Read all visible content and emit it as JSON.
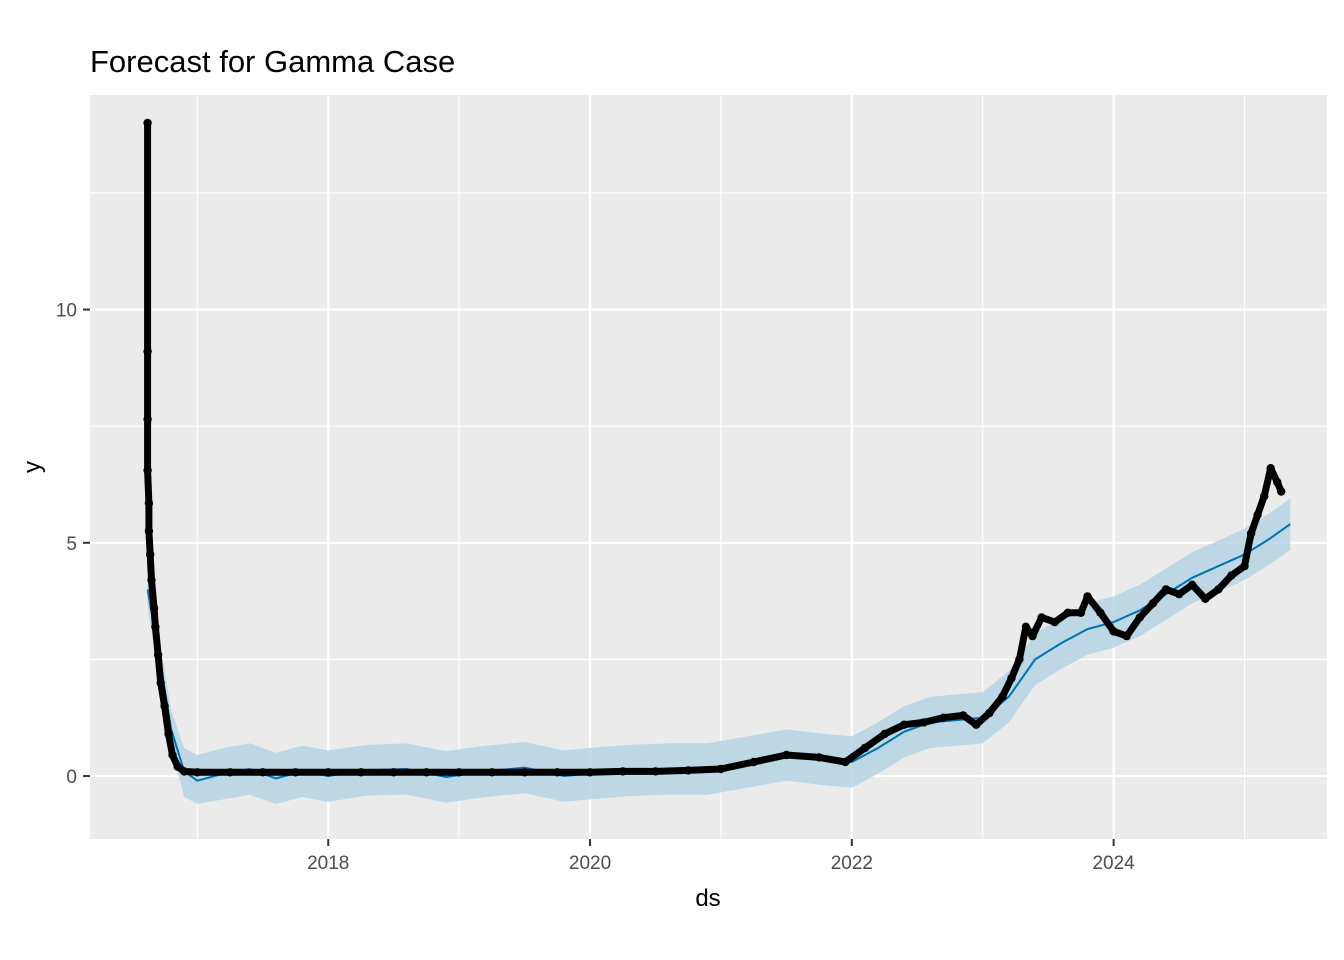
{
  "chart_data": {
    "type": "scatter",
    "title": "Forecast for Gamma Case",
    "xlabel": "ds",
    "ylabel": "y",
    "x_axis": {
      "range": [
        2016.18,
        2025.63
      ],
      "major_ticks": [
        2018,
        2020,
        2022,
        2024
      ],
      "tick_labels": [
        "2018",
        "2020",
        "2022",
        "2024"
      ],
      "minor_ticks": [
        2017,
        2019,
        2021,
        2023,
        2025
      ]
    },
    "y_axis": {
      "range": [
        -1.35,
        14.6
      ],
      "major_ticks": [
        0,
        5,
        10
      ],
      "tick_labels": [
        "0",
        "5",
        "10"
      ],
      "minor_ticks": [
        2.5,
        7.5,
        12.5
      ]
    },
    "grid": true,
    "background": "#ebebeb",
    "colors": {
      "observed": "#000000",
      "forecast_line": "#0072b2",
      "uncertainty_band": "#b5d3e4",
      "grid": "#ffffff"
    },
    "series": [
      {
        "name": "",
        "kind": "observed_points",
        "x": [
          2016.62,
          2016.62,
          2016.62,
          2016.62,
          2016.63,
          2016.63,
          2016.64,
          2016.65,
          2016.67,
          2016.68,
          2016.7,
          2016.72,
          2016.75,
          2016.78,
          2016.81,
          2016.85,
          2016.9,
          2017.0,
          2017.25,
          2017.5,
          2017.75,
          2018.0,
          2018.25,
          2018.5,
          2018.75,
          2019.0,
          2019.25,
          2019.5,
          2019.75,
          2020.0,
          2020.25,
          2020.5,
          2020.75,
          2021.0,
          2021.25,
          2021.5,
          2021.75,
          2021.95,
          2022.1,
          2022.25,
          2022.4,
          2022.55,
          2022.7,
          2022.85,
          2022.95,
          2023.05,
          2023.15,
          2023.22,
          2023.28,
          2023.33,
          2023.38,
          2023.45,
          2023.55,
          2023.65,
          2023.75,
          2023.8,
          2023.9,
          2024.0,
          2024.1,
          2024.2,
          2024.3,
          2024.4,
          2024.5,
          2024.6,
          2024.7,
          2024.8,
          2024.9,
          2025.0,
          2025.05,
          2025.1,
          2025.15,
          2025.2,
          2025.25,
          2025.28
        ],
        "y": [
          14.0,
          9.1,
          7.65,
          6.55,
          5.85,
          5.25,
          4.75,
          4.2,
          3.6,
          3.2,
          2.6,
          2.0,
          1.5,
          0.9,
          0.45,
          0.2,
          0.1,
          0.08,
          0.08,
          0.08,
          0.08,
          0.08,
          0.08,
          0.08,
          0.08,
          0.08,
          0.08,
          0.08,
          0.08,
          0.08,
          0.1,
          0.1,
          0.12,
          0.15,
          0.3,
          0.45,
          0.4,
          0.3,
          0.6,
          0.9,
          1.1,
          1.15,
          1.25,
          1.3,
          1.1,
          1.35,
          1.7,
          2.1,
          2.5,
          3.2,
          3.0,
          3.4,
          3.3,
          3.5,
          3.5,
          3.85,
          3.5,
          3.1,
          3.0,
          3.4,
          3.7,
          4.0,
          3.9,
          4.1,
          3.8,
          4.0,
          4.3,
          4.5,
          5.2,
          5.6,
          6.0,
          6.6,
          6.3,
          6.1
        ]
      },
      {
        "name": "",
        "kind": "forecast_yhat",
        "x": [
          2016.62,
          2016.7,
          2016.8,
          2016.9,
          2017.0,
          2017.2,
          2017.4,
          2017.6,
          2017.8,
          2018.0,
          2018.3,
          2018.6,
          2018.9,
          2019.2,
          2019.5,
          2019.8,
          2020.0,
          2020.3,
          2020.6,
          2020.9,
          2021.2,
          2021.5,
          2021.8,
          2022.0,
          2022.2,
          2022.4,
          2022.6,
          2022.8,
          2023.0,
          2023.2,
          2023.4,
          2023.6,
          2023.8,
          2024.0,
          2024.2,
          2024.4,
          2024.6,
          2024.8,
          2025.0,
          2025.2,
          2025.35
        ],
        "y": [
          4.0,
          2.7,
          1.0,
          0.1,
          -0.1,
          0.05,
          0.15,
          -0.05,
          0.1,
          0.0,
          0.12,
          0.15,
          -0.02,
          0.1,
          0.18,
          0.0,
          0.05,
          0.12,
          0.15,
          0.15,
          0.3,
          0.45,
          0.35,
          0.3,
          0.6,
          0.95,
          1.15,
          1.2,
          1.25,
          1.7,
          2.5,
          2.85,
          3.15,
          3.3,
          3.55,
          3.9,
          4.25,
          4.5,
          4.75,
          5.1,
          5.4
        ]
      },
      {
        "name": "",
        "kind": "uncertainty_interval",
        "x": [
          2016.62,
          2016.7,
          2016.8,
          2016.9,
          2017.0,
          2017.2,
          2017.4,
          2017.6,
          2017.8,
          2018.0,
          2018.3,
          2018.6,
          2018.9,
          2019.2,
          2019.5,
          2019.8,
          2020.0,
          2020.3,
          2020.6,
          2020.9,
          2021.2,
          2021.5,
          2021.8,
          2022.0,
          2022.2,
          2022.4,
          2022.6,
          2022.8,
          2023.0,
          2023.2,
          2023.4,
          2023.6,
          2023.8,
          2024.0,
          2024.2,
          2024.4,
          2024.6,
          2024.8,
          2025.0,
          2025.2,
          2025.35
        ],
        "lower": [
          3.6,
          2.3,
          0.6,
          -0.45,
          -0.6,
          -0.5,
          -0.4,
          -0.6,
          -0.45,
          -0.55,
          -0.42,
          -0.4,
          -0.57,
          -0.45,
          -0.37,
          -0.55,
          -0.5,
          -0.43,
          -0.4,
          -0.4,
          -0.25,
          -0.1,
          -0.2,
          -0.25,
          0.05,
          0.4,
          0.6,
          0.65,
          0.7,
          1.15,
          1.95,
          2.3,
          2.6,
          2.75,
          3.0,
          3.35,
          3.7,
          3.95,
          4.2,
          4.55,
          4.85
        ],
        "upper": [
          4.4,
          3.1,
          1.4,
          0.6,
          0.45,
          0.6,
          0.7,
          0.5,
          0.65,
          0.55,
          0.67,
          0.7,
          0.53,
          0.65,
          0.73,
          0.55,
          0.6,
          0.67,
          0.7,
          0.7,
          0.85,
          1.0,
          0.9,
          0.85,
          1.15,
          1.5,
          1.7,
          1.75,
          1.8,
          2.25,
          3.05,
          3.4,
          3.7,
          3.85,
          4.1,
          4.45,
          4.8,
          5.05,
          5.3,
          5.65,
          5.95
        ]
      }
    ]
  }
}
